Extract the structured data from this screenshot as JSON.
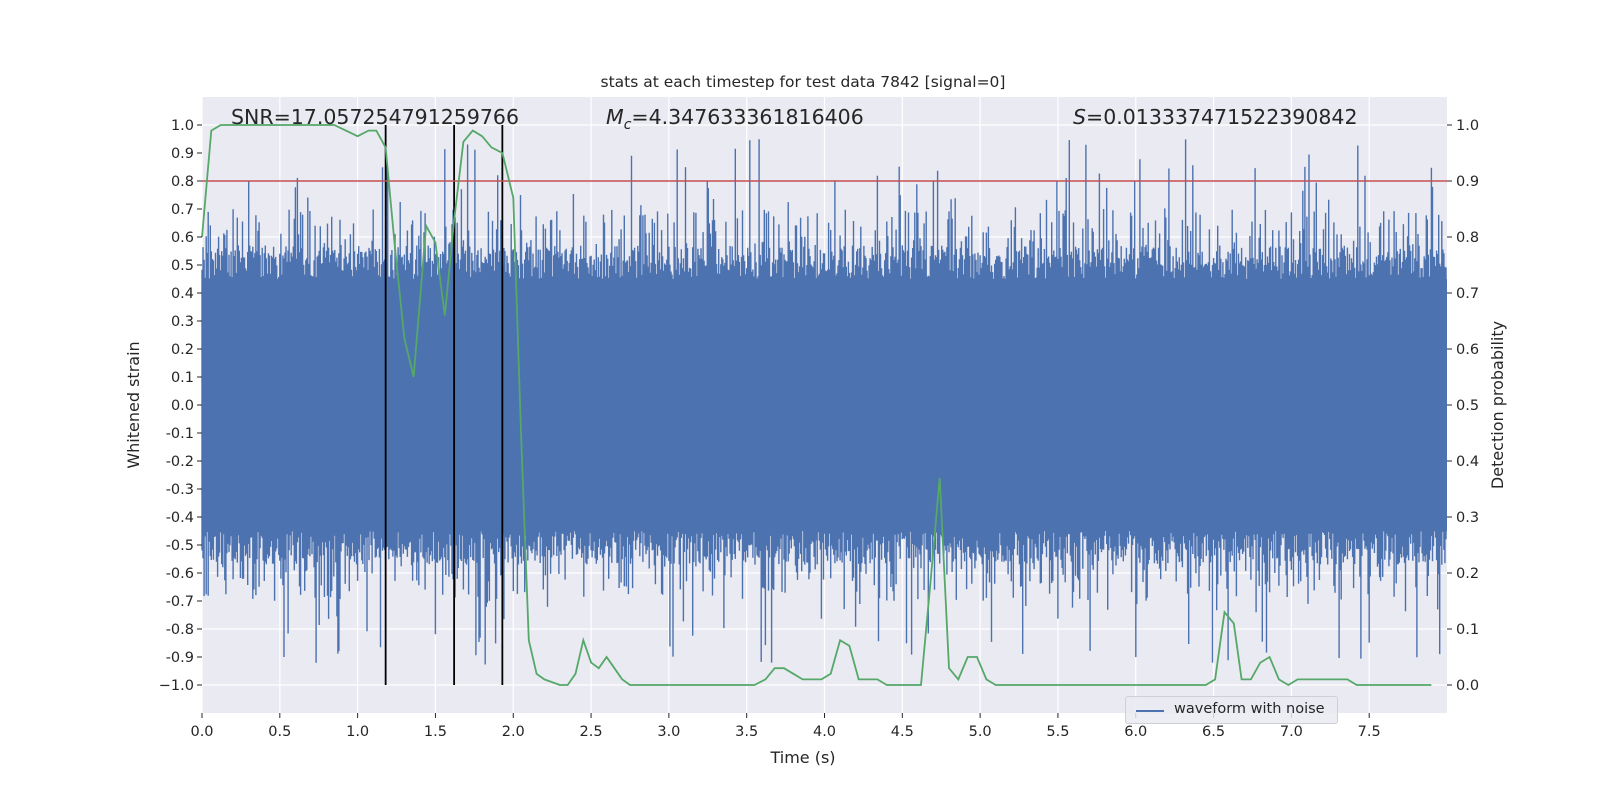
{
  "chart_data": {
    "type": "line",
    "title": "stats at each timestep for test data 7842 [signal=0]",
    "xlabel": "Time (s)",
    "ylabel": "Whitened strain",
    "y2label": "Detection probability",
    "xlim": [
      0.0,
      8.0
    ],
    "ylim": [
      -1.1,
      1.1
    ],
    "y2lim": [
      -0.05,
      1.05
    ],
    "xticks": [
      "0.0",
      "0.5",
      "1.0",
      "1.5",
      "2.0",
      "2.5",
      "3.0",
      "3.5",
      "4.0",
      "4.5",
      "5.0",
      "5.5",
      "6.0",
      "6.5",
      "7.0",
      "7.5"
    ],
    "yticks": [
      "1.0",
      "0.9",
      "0.8",
      "0.7",
      "0.6",
      "0.5",
      "0.4",
      "0.3",
      "0.2",
      "0.1",
      "0.0",
      "-0.1",
      "-0.2",
      "-0.3",
      "-0.4",
      "-0.5",
      "-0.6",
      "-0.7",
      "-0.8",
      "-0.9",
      "−1.0"
    ],
    "y2ticks": [
      "1.0",
      "0.9",
      "0.8",
      "0.7",
      "0.6",
      "0.5",
      "0.4",
      "0.3",
      "0.2",
      "0.1",
      "0.0"
    ],
    "annotations": {
      "snr": "SNR=17.057254791259766",
      "mc_symbol": "M",
      "mc_sub": "c",
      "mc_value": "=4.347633361816406",
      "s_symbol": "S",
      "s_value": "=0.013337471522390842"
    },
    "threshold": 0.9,
    "vlines_x": [
      1.18,
      1.62,
      1.93
    ],
    "series": [
      {
        "name": "waveform with noise",
        "color": "#4c72b0",
        "description_of_values": "dense noise samples",
        "envelope_core": 0.45,
        "peak_max": 0.95,
        "peak_min": -0.93
      },
      {
        "color": "#55a868",
        "axis": "right",
        "x": [
          0.0,
          0.06,
          0.12,
          0.3,
          0.5,
          0.7,
          0.85,
          1.0,
          1.07,
          1.12,
          1.18,
          1.24,
          1.3,
          1.36,
          1.44,
          1.5,
          1.56,
          1.62,
          1.68,
          1.74,
          1.8,
          1.86,
          1.93,
          2.0,
          2.05,
          2.1,
          2.15,
          2.2,
          2.3,
          2.35,
          2.4,
          2.45,
          2.5,
          2.55,
          2.6,
          2.65,
          2.7,
          2.75,
          2.8,
          2.9,
          3.0,
          3.2,
          3.4,
          3.55,
          3.62,
          3.68,
          3.74,
          3.8,
          3.86,
          3.92,
          3.98,
          4.04,
          4.1,
          4.16,
          4.22,
          4.28,
          4.34,
          4.4,
          4.48,
          4.56,
          4.62,
          4.68,
          4.74,
          4.8,
          4.86,
          4.92,
          4.98,
          5.04,
          5.1,
          5.3,
          5.5,
          5.7,
          5.9,
          6.1,
          6.3,
          6.45,
          6.51,
          6.57,
          6.63,
          6.68,
          6.74,
          6.8,
          6.86,
          6.92,
          6.98,
          7.04,
          7.1,
          7.2,
          7.3,
          7.36,
          7.42,
          7.5,
          7.6,
          7.7,
          7.8,
          7.9
        ],
        "y": [
          0.8,
          0.99,
          1.0,
          1.0,
          1.0,
          1.0,
          1.0,
          0.98,
          0.99,
          0.99,
          0.96,
          0.78,
          0.62,
          0.55,
          0.82,
          0.79,
          0.66,
          0.83,
          0.97,
          0.99,
          0.98,
          0.96,
          0.95,
          0.87,
          0.45,
          0.08,
          0.02,
          0.01,
          0.0,
          0.0,
          0.02,
          0.08,
          0.04,
          0.03,
          0.05,
          0.03,
          0.01,
          0.0,
          0.0,
          0.0,
          0.0,
          0.0,
          0.0,
          0.0,
          0.01,
          0.03,
          0.03,
          0.02,
          0.01,
          0.01,
          0.01,
          0.02,
          0.08,
          0.07,
          0.01,
          0.01,
          0.01,
          0.0,
          0.0,
          0.0,
          0.0,
          0.18,
          0.37,
          0.03,
          0.01,
          0.05,
          0.05,
          0.01,
          0.0,
          0.0,
          0.0,
          0.0,
          0.0,
          0.0,
          0.0,
          0.0,
          0.01,
          0.13,
          0.11,
          0.01,
          0.01,
          0.04,
          0.05,
          0.01,
          0.0,
          0.01,
          0.01,
          0.01,
          0.01,
          0.01,
          0.0,
          0.0,
          0.0,
          0.0,
          0.0,
          0.0
        ]
      }
    ],
    "legend": {
      "label": "waveform with noise",
      "loc": "lower-right"
    },
    "style": {
      "axes_bg": "#eaeaf2",
      "grid": true,
      "grid_color": "#ffffff",
      "threshold_color": "#c44e52",
      "vline_color": "#000000"
    }
  }
}
